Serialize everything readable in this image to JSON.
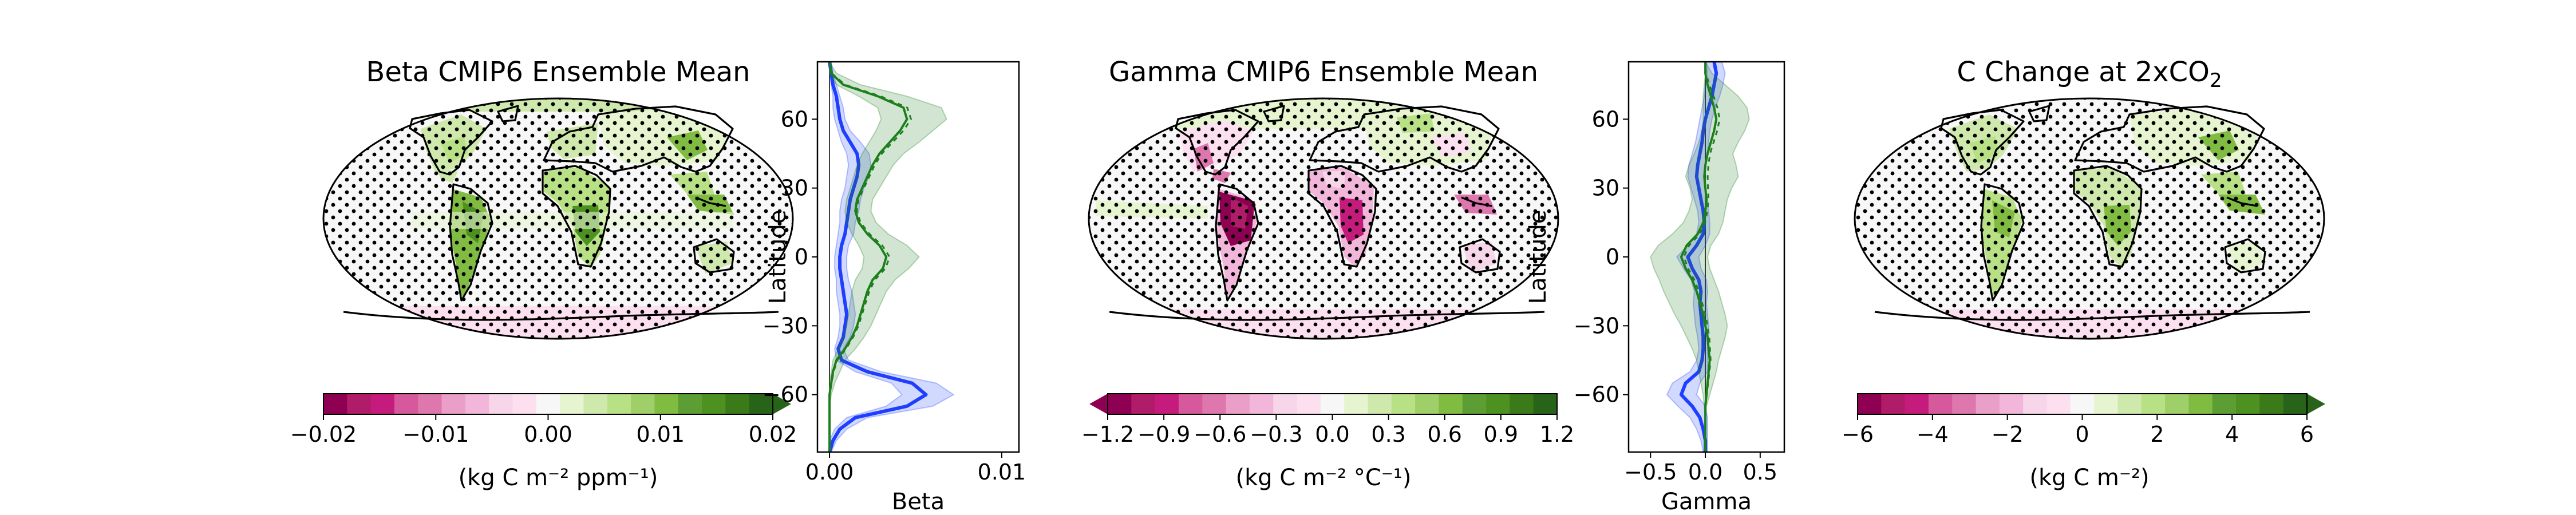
{
  "palette": [
    "#8e0152",
    "#b11c68",
    "#c51b7d",
    "#d6599b",
    "#de77ae",
    "#ea9fc9",
    "#f1b6da",
    "#f8d6ea",
    "#fde0ef",
    "#f7f7f7",
    "#e6f5d0",
    "#cfe9ad",
    "#b8e186",
    "#9fcf68",
    "#7fbc41",
    "#5c9e33",
    "#4d9221",
    "#3a7a19",
    "#276419"
  ],
  "series_colors": {
    "regional": "#1f3fff",
    "ensemble": "#1c7f1c"
  },
  "maps": [
    {
      "id": "beta",
      "title": "Beta CMIP6 Ensemble Mean",
      "colorbar": {
        "ticks": [
          "−0.02",
          "−0.01",
          "0.00",
          "0.01",
          "0.02"
        ],
        "label": "(kg C m⁻² ppm⁻¹)",
        "extend": "max"
      }
    },
    {
      "id": "gamma",
      "title": "Gamma CMIP6 Ensemble Mean",
      "colorbar": {
        "ticks": [
          "−1.2",
          "−0.9",
          "−0.6",
          "−0.3",
          "0.0",
          "0.3",
          "0.6",
          "0.9",
          "1.2"
        ],
        "label": "(kg C m⁻² °C⁻¹)",
        "extend": "min"
      }
    },
    {
      "id": "cchange",
      "title_main": "C Change at 2xCO",
      "title_sub": "2",
      "colorbar": {
        "ticks": [
          "−6",
          "−4",
          "−2",
          "0",
          "2",
          "4",
          "6"
        ],
        "label": "(kg C m⁻²)",
        "extend": "max"
      }
    }
  ],
  "chart_data": [
    {
      "type": "line",
      "id": "beta-profile",
      "xlabel": "Beta",
      "ylabel": "Latitude",
      "xlim": [
        -0.0007,
        0.011
      ],
      "ylim": [
        -85,
        85
      ],
      "xticks": [
        "0.00",
        "0.01"
      ],
      "yticks": [
        "−60",
        "−30",
        "0",
        "30",
        "60"
      ],
      "series": [
        {
          "lat": [
            -85,
            -80,
            -75,
            -70,
            -65,
            -60,
            -55,
            -50,
            -45,
            -40,
            -35,
            -30,
            -25,
            -20,
            -15,
            -10,
            -5,
            0,
            5,
            10,
            15,
            20,
            25,
            30,
            35,
            40,
            45,
            50,
            55,
            60,
            65,
            70,
            75,
            80,
            85
          ],
          "values": [
            0,
            0.0002,
            0.0006,
            0.0015,
            0.0045,
            0.0056,
            0.0048,
            0.0022,
            0.0007,
            0.0005,
            0.0008,
            0.0009,
            0.001,
            0.0009,
            0.0008,
            0.0007,
            0.0006,
            0.0006,
            0.0007,
            0.0009,
            0.001,
            0.0011,
            0.0012,
            0.0014,
            0.0016,
            0.0017,
            0.0016,
            0.0012,
            0.0008,
            0.0006,
            0.0005,
            0.0004,
            0.0002,
            0.0001,
            0
          ],
          "lower": [
            0,
            0,
            0.0003,
            0.001,
            0.0033,
            0.0042,
            0.0036,
            0.0015,
            0.0004,
            0.0003,
            0.0005,
            0.0006,
            0.0006,
            0.0005,
            0.0004,
            0.0004,
            0.0003,
            0.0003,
            0.0004,
            0.0005,
            0.0006,
            0.0006,
            0.0007,
            0.0009,
            0.001,
            0.0011,
            0.001,
            0.0007,
            0.0005,
            0.0003,
            0.0002,
            0.0002,
            0.0001,
            0,
            0
          ],
          "upper": [
            0.0001,
            0.0004,
            0.001,
            0.0022,
            0.006,
            0.0072,
            0.0062,
            0.003,
            0.0011,
            0.0008,
            0.0012,
            0.0014,
            0.0015,
            0.0014,
            0.0013,
            0.0011,
            0.001,
            0.001,
            0.0011,
            0.0014,
            0.0015,
            0.0017,
            0.0018,
            0.002,
            0.0023,
            0.0024,
            0.0023,
            0.0018,
            0.0012,
            0.0009,
            0.0008,
            0.0006,
            0.0004,
            0.0002,
            0.0001
          ]
        },
        {
          "lat": [
            -85,
            -80,
            -75,
            -70,
            -65,
            -60,
            -55,
            -50,
            -45,
            -40,
            -35,
            -30,
            -25,
            -20,
            -15,
            -10,
            -5,
            0,
            5,
            10,
            15,
            20,
            25,
            30,
            35,
            40,
            45,
            50,
            55,
            60,
            65,
            70,
            75,
            80,
            85
          ],
          "values": [
            0,
            0,
            0,
            0,
            0,
            0,
            0.0001,
            0.0002,
            0.0004,
            0.0009,
            0.0013,
            0.0016,
            0.0018,
            0.002,
            0.0022,
            0.0025,
            0.0031,
            0.0033,
            0.0029,
            0.0022,
            0.0017,
            0.0015,
            0.0016,
            0.0019,
            0.0022,
            0.0025,
            0.0029,
            0.0035,
            0.0041,
            0.0045,
            0.0043,
            0.0028,
            0.0008,
            0.0001,
            0
          ],
          "lower": [
            0,
            0,
            0,
            0,
            0,
            0,
            0,
            0.0001,
            0.0002,
            0.0005,
            0.0008,
            0.001,
            0.0011,
            0.0012,
            0.0013,
            0.0015,
            0.0019,
            0.002,
            0.0017,
            0.0013,
            0.001,
            0.0009,
            0.001,
            0.0012,
            0.0014,
            0.0016,
            0.0019,
            0.0023,
            0.0027,
            0.003,
            0.0028,
            0.0017,
            0.0004,
            0,
            0
          ],
          "upper": [
            0,
            0,
            0,
            0,
            0,
            0.0001,
            0.0003,
            0.0006,
            0.0009,
            0.0015,
            0.002,
            0.0024,
            0.0027,
            0.003,
            0.0033,
            0.0038,
            0.0046,
            0.0052,
            0.0045,
            0.0034,
            0.0027,
            0.0024,
            0.0025,
            0.0029,
            0.0033,
            0.0037,
            0.0043,
            0.0052,
            0.006,
            0.0068,
            0.0065,
            0.0045,
            0.0018,
            0.0004,
            0
          ]
        }
      ]
    },
    {
      "type": "line",
      "id": "gamma-profile",
      "xlabel": "Gamma",
      "ylabel": "Latitude",
      "xlim": [
        -0.7,
        0.72
      ],
      "ylim": [
        -85,
        85
      ],
      "xticks": [
        "−0.5",
        "0.0",
        "0.5"
      ],
      "yticks": [
        "−60",
        "−30",
        "0",
        "30",
        "60"
      ],
      "series": [
        {
          "lat": [
            -85,
            -80,
            -75,
            -70,
            -65,
            -60,
            -55,
            -50,
            -45,
            -40,
            -35,
            -30,
            -25,
            -20,
            -15,
            -10,
            -5,
            0,
            5,
            10,
            15,
            20,
            25,
            30,
            35,
            40,
            45,
            50,
            55,
            60,
            65,
            70,
            75,
            80,
            85
          ],
          "values": [
            0,
            0,
            -0.02,
            -0.05,
            -0.12,
            -0.22,
            -0.18,
            -0.06,
            -0.03,
            -0.02,
            -0.02,
            -0.03,
            -0.04,
            -0.05,
            -0.04,
            -0.06,
            -0.12,
            -0.16,
            -0.08,
            -0.02,
            -0.01,
            -0.02,
            -0.04,
            -0.06,
            -0.08,
            -0.07,
            -0.05,
            -0.03,
            -0.02,
            0,
            0.03,
            0.06,
            0.08,
            0.1,
            0.08
          ],
          "lower": [
            -0.02,
            -0.04,
            -0.08,
            -0.14,
            -0.25,
            -0.35,
            -0.3,
            -0.14,
            -0.08,
            -0.06,
            -0.07,
            -0.09,
            -0.1,
            -0.11,
            -0.1,
            -0.13,
            -0.2,
            -0.26,
            -0.16,
            -0.08,
            -0.06,
            -0.07,
            -0.1,
            -0.13,
            -0.16,
            -0.15,
            -0.12,
            -0.09,
            -0.07,
            -0.05,
            -0.03,
            -0.01,
            0,
            0.02,
            0.01
          ],
          "upper": [
            0.02,
            0.02,
            0.02,
            0.02,
            0,
            -0.08,
            -0.05,
            0.02,
            0.02,
            0.02,
            0.03,
            0.03,
            0.02,
            0.01,
            0.02,
            0.01,
            -0.04,
            -0.06,
            0,
            0.04,
            0.04,
            0.03,
            0.02,
            0,
            -0.01,
            0,
            0.02,
            0.03,
            0.04,
            0.06,
            0.09,
            0.13,
            0.16,
            0.18,
            0.15
          ]
        },
        {
          "lat": [
            -85,
            -80,
            -75,
            -70,
            -65,
            -60,
            -55,
            -50,
            -45,
            -40,
            -35,
            -30,
            -25,
            -20,
            -15,
            -10,
            -5,
            0,
            5,
            10,
            15,
            20,
            25,
            30,
            35,
            40,
            45,
            50,
            55,
            60,
            65,
            70,
            75,
            80,
            85
          ],
          "values": [
            0,
            0,
            0,
            0,
            0,
            0.01,
            0.02,
            0.03,
            0.04,
            0.03,
            0.02,
            0,
            -0.02,
            -0.05,
            -0.08,
            -0.12,
            -0.18,
            -0.22,
            -0.17,
            -0.07,
            -0.02,
            0,
            0.01,
            0,
            -0.01,
            0,
            0.02,
            0.05,
            0.08,
            0.1,
            0.08,
            0.05,
            0.02,
            0,
            0
          ],
          "lower": [
            0,
            0,
            0,
            0,
            -0.01,
            -0.02,
            -0.04,
            -0.06,
            -0.08,
            -0.12,
            -0.17,
            -0.22,
            -0.28,
            -0.33,
            -0.38,
            -0.42,
            -0.47,
            -0.5,
            -0.43,
            -0.3,
            -0.2,
            -0.15,
            -0.12,
            -0.14,
            -0.18,
            -0.15,
            -0.1,
            -0.06,
            -0.03,
            -0.02,
            -0.02,
            -0.02,
            -0.01,
            0,
            0
          ],
          "upper": [
            0,
            0,
            0,
            0,
            0.01,
            0.04,
            0.07,
            0.1,
            0.12,
            0.15,
            0.18,
            0.2,
            0.18,
            0.15,
            0.12,
            0.08,
            0.04,
            0.02,
            0.05,
            0.12,
            0.16,
            0.18,
            0.2,
            0.24,
            0.3,
            0.28,
            0.25,
            0.3,
            0.36,
            0.4,
            0.38,
            0.3,
            0.18,
            0.06,
            0
          ]
        }
      ]
    }
  ]
}
